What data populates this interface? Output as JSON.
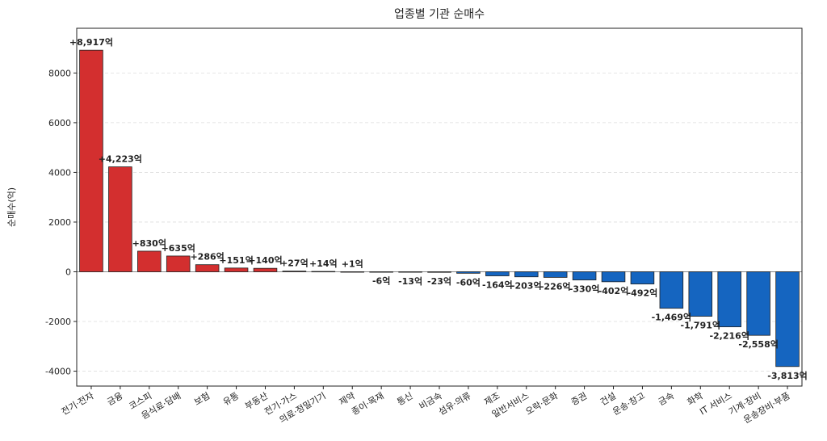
{
  "chart_data": {
    "type": "bar",
    "title": "업종별 기관 순매수",
    "xlabel": "",
    "ylabel": "순매수(억)",
    "ylim": [
      -4600,
      9800
    ],
    "yticks": [
      -4000,
      -2000,
      0,
      2000,
      4000,
      6000,
      8000
    ],
    "ytick_labels": [
      "-4000",
      "-2000",
      "0",
      "2000",
      "4000",
      "6000",
      "8000"
    ],
    "grid": "horizontal dashed",
    "categories": [
      "전기·전자",
      "금융",
      "코스피",
      "음식료·담배",
      "보험",
      "유통",
      "부동산",
      "전기·가스",
      "의료·정밀기기",
      "제약",
      "종이·목재",
      "통신",
      "비금속",
      "섬유·의류",
      "제조",
      "일반서비스",
      "오락·문화",
      "증권",
      "건설",
      "운송·창고",
      "금속",
      "화학",
      "IT 서비스",
      "기계·장비",
      "운송장비·부품"
    ],
    "values": [
      8917,
      4223,
      830,
      635,
      286,
      151,
      140,
      27,
      14,
      1,
      -6,
      -13,
      -23,
      -60,
      -164,
      -203,
      -226,
      -330,
      -402,
      -492,
      -1469,
      -1791,
      -2216,
      -2558,
      -3813
    ],
    "value_labels": [
      "+8,917억",
      "+4,223억",
      "+830억",
      "+635억",
      "+286억",
      "+151억",
      "+140억",
      "+27억",
      "+14억",
      "+1억",
      "-6억",
      "-13억",
      "-23억",
      "-60억",
      "-164억",
      "-203억",
      "-226억",
      "-330억",
      "-402억",
      "-492억",
      "-1,469억",
      "-1,791억",
      "-2,216억",
      "-2,558억",
      "-3,813억"
    ],
    "colors": {
      "positive": "#d32f2f",
      "negative": "#1565c0",
      "edge": "#222222",
      "zero_line": "#888888",
      "grid": "#dddddd"
    }
  }
}
